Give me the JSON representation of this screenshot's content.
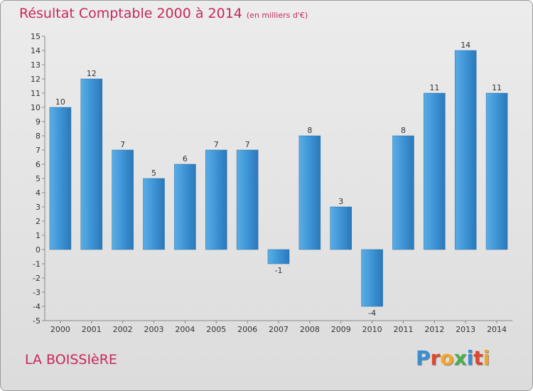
{
  "header": {
    "title": "Résultat Comptable 2000 à 2014",
    "subtitle": "(en milliers d'€)"
  },
  "footer": {
    "place": "LA BOISSIèRE",
    "logo_letters": [
      "P",
      "r",
      "o",
      "x",
      "i",
      "t",
      "i"
    ],
    "logo_colors": [
      "#3a8fd0",
      "#e0482e",
      "#f5a623",
      "#4caf50",
      "#3a8fd0",
      "#e0482e",
      "#f5a623"
    ]
  },
  "colors": {
    "title": "#c8285a",
    "bar_light": "#6ab7ec",
    "bar_dark": "#2c7dc0",
    "axis": "#888888",
    "text": "#333333"
  },
  "chart_data": {
    "type": "bar",
    "title": "Résultat Comptable 2000 à 2014",
    "xlabel": "",
    "ylabel": "",
    "categories": [
      "2000",
      "2001",
      "2002",
      "2003",
      "2004",
      "2005",
      "2006",
      "2007",
      "2008",
      "2009",
      "2010",
      "2011",
      "2012",
      "2013",
      "2014"
    ],
    "values": [
      10,
      12,
      7,
      5,
      6,
      7,
      7,
      -1,
      8,
      3,
      -4,
      8,
      11,
      14,
      11
    ],
    "ylim": [
      -5,
      15
    ],
    "yticks": [
      "15",
      "14",
      "13",
      "12",
      "11",
      "10",
      "9",
      "8",
      "7",
      "6",
      "5",
      "4",
      "3",
      "2",
      "1",
      "0",
      "-1",
      "-2",
      "-3",
      "-4",
      "-5"
    ],
    "grid": false
  }
}
